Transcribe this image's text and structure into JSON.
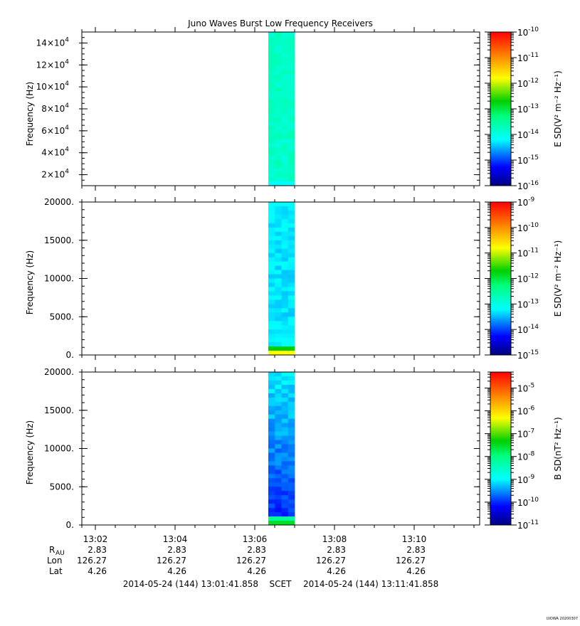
{
  "chart_data": {
    "type": "heatmap",
    "title": "Juno Waves Burst Low Frequency Receivers",
    "x_ticks": [
      "13:02",
      "13:04",
      "13:06",
      "13:08",
      "13:10"
    ],
    "data_interval": [
      "13:06.3",
      "13:07.0"
    ],
    "panels": [
      {
        "ylabel": "Frequency (Hz)",
        "y_ticks": [
          {
            "m": "2×10",
            "e": "4"
          },
          {
            "m": "4×10",
            "e": "4"
          },
          {
            "m": "6×10",
            "e": "4"
          },
          {
            "m": "8×10",
            "e": "4"
          },
          {
            "m": "10×10",
            "e": "4"
          },
          {
            "m": "12×10",
            "e": "4"
          },
          {
            "m": "14×10",
            "e": "4"
          }
        ],
        "ylim": [
          10000,
          150000
        ],
        "colorbar_label": "E SD(V² m⁻² Hz⁻¹)",
        "colorbar_ticks": [
          "-16",
          "-15",
          "-14",
          "-13",
          "-12",
          "-11",
          "-10"
        ],
        "colorbar_range_log10": [
          -16,
          -10
        ],
        "dominant_level_log10": -13.8
      },
      {
        "ylabel": "Frequency (Hz)",
        "y_ticks": [
          "0.",
          "5000.",
          "10000.",
          "15000.",
          "20000."
        ],
        "ylim": [
          0,
          20000
        ],
        "colorbar_label": "E SD(V² m⁻² Hz⁻¹)",
        "colorbar_ticks": [
          "-15",
          "-14",
          "-13",
          "-12",
          "-11",
          "-10",
          "-9"
        ],
        "colorbar_range_log10": [
          -15,
          -9
        ],
        "dominant_level_log10": -13.3
      },
      {
        "ylabel": "Frequency (Hz)",
        "y_ticks": [
          "0.",
          "5000.",
          "10000.",
          "15000.",
          "20000."
        ],
        "ylim": [
          0,
          20000
        ],
        "colorbar_label": "B SD(nT² Hz⁻¹)",
        "colorbar_ticks": [
          "-11",
          "-10",
          "-9",
          "-8",
          "-7",
          "-6",
          "-5"
        ],
        "colorbar_range_log10": [
          -11,
          -4.3
        ],
        "dominant_level_log10": -10.3
      }
    ],
    "ephemeris": {
      "labels": {
        "r_main": "R",
        "r_sub": "AU",
        "lon": "Lon",
        "lat": "Lat"
      },
      "r": [
        "2.83",
        "2.83",
        "2.83",
        "2.83",
        "2.83"
      ],
      "lon": [
        "126.27",
        "126.27",
        "126.27",
        "126.27",
        "126.27"
      ],
      "lat": [
        "4.26",
        "4.26",
        "4.26",
        "4.26",
        "4.26"
      ]
    },
    "time_range": {
      "start": "2014-05-24 (144) 13:01:41.858",
      "label": "SCET",
      "end": "2014-05-24 (144) 13:11:41.858"
    },
    "footer": "UIOWA 20200307"
  }
}
